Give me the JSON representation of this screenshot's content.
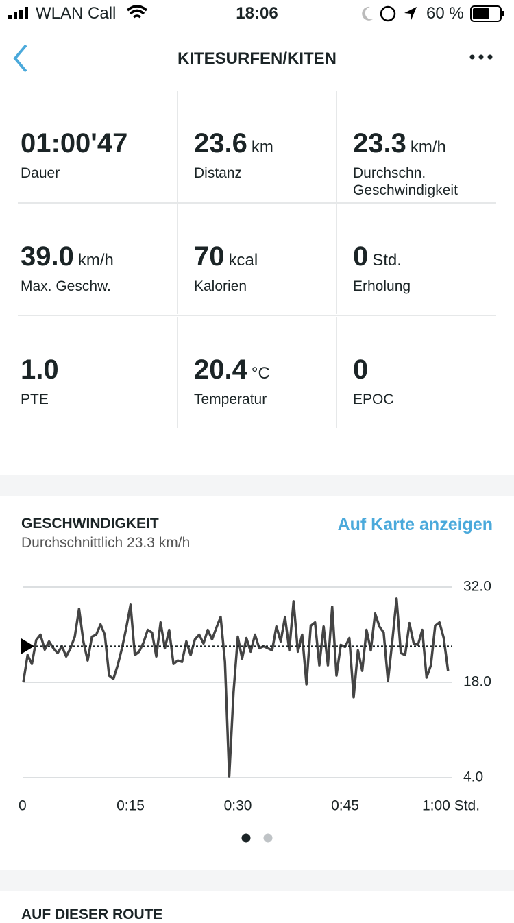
{
  "status_bar": {
    "carrier": "WLAN Call",
    "time": "18:06",
    "battery": "60 %"
  },
  "header": {
    "title": "KITESURFEN/KITEN"
  },
  "stats": [
    {
      "value": "01:00'47",
      "label": "Dauer"
    },
    {
      "value": "23.6",
      "unit": "km",
      "label": "Distanz"
    },
    {
      "value": "23.3",
      "unit": "km/h",
      "label": "Durchschn. Geschwindigkeit"
    },
    {
      "value": "39.0",
      "unit": "km/h",
      "label": "Max. Geschw."
    },
    {
      "value": "70",
      "unit": "kcal",
      "label": "Kalorien"
    },
    {
      "value": "0",
      "unit": "Std.",
      "label": "Erholung"
    },
    {
      "value": "1.0",
      "label": "PTE"
    },
    {
      "value": "20.4",
      "unit": "°C",
      "label": "Temperatur"
    },
    {
      "value": "0",
      "label": "EPOC"
    }
  ],
  "link": "Auf Karte anzeigen",
  "chart_data": {
    "type": "line",
    "title": "GESCHWINDIGKEIT",
    "subtitle": "Durchschnittlich 23.3 km/h",
    "average": 23.3,
    "color": "#444444",
    "x": [
      0,
      0.6,
      1.2,
      1.8,
      2.4,
      3,
      3.6,
      4.2,
      4.8,
      5.4,
      6,
      6.6,
      7.2,
      7.8,
      8.4,
      9,
      9.6,
      10.2,
      10.8,
      11.4,
      12,
      12.6,
      13.2,
      13.8,
      14.4,
      15,
      15.6,
      16.2,
      16.8,
      17.4,
      18,
      18.6,
      19.2,
      19.8,
      20.4,
      21,
      21.6,
      22.2,
      22.8,
      23.4,
      24,
      24.6,
      25.2,
      25.8,
      26.4,
      27,
      27.6,
      28.2,
      28.8,
      29.4,
      30,
      30.6,
      31.2,
      31.8,
      32.4,
      33,
      33.6,
      34.2,
      34.8,
      35.4,
      36,
      36.6,
      37.2,
      37.8,
      38.4,
      39,
      39.6,
      40.2,
      40.8,
      41.4,
      42,
      42.6,
      43.2,
      43.8,
      44.4,
      45,
      45.6,
      46.2,
      46.8,
      47.4,
      48,
      48.6,
      49.2,
      49.8,
      50.4,
      51,
      51.6,
      52.2,
      52.8,
      53.4,
      54,
      54.6,
      55.2,
      55.8,
      56.4,
      57,
      57.6,
      58.2,
      58.8,
      59.4
    ],
    "values": [
      18.0,
      22.0,
      20.7,
      24.2,
      25.0,
      22.8,
      24.0,
      23.0,
      22.3,
      23.3,
      21.8,
      23.0,
      24.7,
      28.8,
      24.0,
      21.2,
      24.7,
      25.0,
      26.5,
      25.0,
      19.0,
      18.5,
      20.5,
      23.0,
      26.0,
      29.4,
      22.0,
      22.5,
      23.8,
      25.7,
      25.3,
      21.8,
      26.8,
      23.0,
      25.7,
      20.7,
      21.2,
      21.0,
      24.0,
      22.0,
      24.3,
      25.0,
      23.7,
      25.7,
      24.3,
      26.0,
      27.6,
      21.0,
      4.2,
      16.5,
      24.7,
      21.5,
      24.5,
      22.5,
      25.0,
      23.0,
      23.3,
      23.0,
      22.7,
      26.2,
      24.0,
      27.6,
      22.7,
      29.9,
      22.5,
      25.0,
      17.7,
      26.3,
      26.8,
      20.5,
      26.2,
      20.5,
      29.1,
      19.0,
      23.5,
      23.2,
      24.5,
      15.8,
      22.7,
      19.7,
      25.7,
      22.7,
      28.1,
      26.2,
      25.3,
      18.2,
      24.0,
      30.3,
      22.3,
      22.0,
      26.7,
      23.7,
      23.5,
      25.7,
      18.7,
      20.5,
      26.3,
      26.8,
      24.5,
      19.7
    ],
    "xlim": [
      0,
      60
    ],
    "xticks": [
      0,
      {
        "value": 15,
        "label": "0:15"
      },
      {
        "value": 30,
        "label": "0:30"
      },
      {
        "value": 45,
        "label": "0:45"
      },
      {
        "value": 60,
        "label": "1:00 Std."
      }
    ],
    "ylim": [
      4,
      32
    ],
    "yticks": [
      {
        "value": 32,
        "label": "32.0"
      },
      {
        "value": 18,
        "label": "18.0"
      },
      {
        "value": 4,
        "label": "4.0"
      }
    ],
    "grid": true
  },
  "next_section": {
    "title": "AUF DIESER ROUTE"
  }
}
